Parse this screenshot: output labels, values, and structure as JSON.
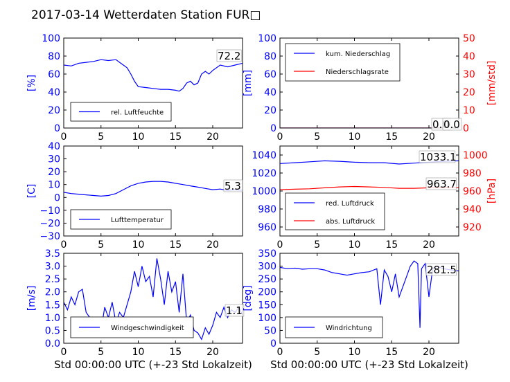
{
  "figure": {
    "title": "2017-03-14 Wetterdaten Station FUR□",
    "xlabel": "Std 00:00:00 UTC (+-23 Std Lokalzeit)"
  },
  "colors": {
    "blue": "#0000ff",
    "red": "#ff0000",
    "black": "#000000"
  },
  "chart_data": [
    {
      "id": "humidity",
      "type": "line",
      "xlim": [
        0,
        24
      ],
      "ylim": [
        0,
        100
      ],
      "ylabel": "[%]",
      "xticks": [
        "0",
        "5",
        "10",
        "15",
        "20"
      ],
      "yticks": [
        "0",
        "20",
        "40",
        "60",
        "80",
        "100"
      ],
      "legend": [
        {
          "label": "rel. Luftfeuchte",
          "color": "#0000ff"
        }
      ],
      "legend_location": "lower-left",
      "annotations": [
        "72.2"
      ],
      "series": [
        {
          "color": "#0000ff",
          "x": [
            0,
            1,
            2,
            3,
            4,
            5,
            6,
            7,
            7.5,
            8,
            8.5,
            9,
            9.5,
            10,
            11,
            12,
            13,
            14,
            15,
            15.5,
            16,
            16.5,
            17,
            17.5,
            18,
            18.5,
            19,
            19.5,
            20,
            21,
            22,
            23,
            24
          ],
          "y": [
            70,
            69,
            72,
            73,
            74,
            76,
            75,
            76,
            73,
            70,
            67,
            60,
            52,
            46,
            45,
            44,
            43,
            43,
            42,
            41,
            44,
            50,
            52,
            48,
            50,
            60,
            63,
            60,
            64,
            70,
            68,
            70,
            72
          ]
        }
      ]
    },
    {
      "id": "precipitation",
      "type": "line",
      "xlim": [
        0,
        24
      ],
      "ylim": [
        0,
        100
      ],
      "ylabel": "[mm]",
      "ylim_right": [
        0,
        50
      ],
      "ylabel_right": "[mm/std]",
      "xticks": [
        "0",
        "5",
        "10",
        "15",
        "20"
      ],
      "yticks": [
        "0",
        "20",
        "40",
        "60",
        "80",
        "100"
      ],
      "yticks_right": [
        "0",
        "10",
        "20",
        "30",
        "40",
        "50"
      ],
      "legend": [
        {
          "label": "kum. Niederschlag",
          "color": "#0000ff"
        },
        {
          "label": "Niederschlagsrate",
          "color": "#ff0000"
        }
      ],
      "legend_location": "upper-left",
      "annotations": [
        "0.0",
        "0.0"
      ],
      "series": [
        {
          "color": "#0000ff",
          "x": [
            0,
            24
          ],
          "y": [
            0,
            0
          ]
        },
        {
          "color": "#ff0000",
          "x": [
            0,
            24
          ],
          "y": [
            0,
            0
          ]
        }
      ]
    },
    {
      "id": "temperature",
      "type": "line",
      "xlim": [
        0,
        24
      ],
      "ylim": [
        -30,
        40
      ],
      "ylabel": "[C]",
      "xticks": [
        "0",
        "5",
        "10",
        "15",
        "20"
      ],
      "yticks": [
        "−30",
        "−20",
        "−10",
        "0",
        "10",
        "20",
        "30",
        "40"
      ],
      "legend": [
        {
          "label": "Lufttemperatur",
          "color": "#0000ff"
        }
      ],
      "legend_location": "lower-left",
      "annotations": [
        "5.3"
      ],
      "series": [
        {
          "color": "#0000ff",
          "x": [
            0,
            1,
            2,
            3,
            4,
            5,
            6,
            7,
            8,
            9,
            10,
            11,
            12,
            13,
            14,
            15,
            16,
            17,
            18,
            19,
            20,
            21,
            22,
            23,
            24
          ],
          "y": [
            4,
            3,
            2.5,
            2,
            1.5,
            1,
            1.5,
            3,
            6,
            9,
            11,
            12,
            12.5,
            12.5,
            12,
            11,
            10,
            9,
            8,
            7,
            6,
            6.5,
            5.5,
            6,
            5.5
          ]
        }
      ]
    },
    {
      "id": "pressure",
      "type": "line",
      "xlim": [
        0,
        24
      ],
      "ylim": [
        950,
        1050
      ],
      "ylabel": "",
      "ylim_right": [
        910,
        1010
      ],
      "ylabel_right": "[hPa]",
      "xticks": [
        "0",
        "5",
        "10",
        "15",
        "20"
      ],
      "yticks": [
        "960",
        "980",
        "1000",
        "1020",
        "1040"
      ],
      "yticks_right": [
        "920",
        "940",
        "960",
        "980",
        "1000"
      ],
      "legend": [
        {
          "label": "red. Luftdruck",
          "color": "#0000ff"
        },
        {
          "label": "abs. Luftdruck",
          "color": "#ff0000"
        }
      ],
      "legend_location": "lower-left",
      "annotations": [
        "1033.1",
        "963.7"
      ],
      "series": [
        {
          "color": "#0000ff",
          "axis": "left",
          "x": [
            0,
            2,
            4,
            6,
            8,
            10,
            12,
            14,
            16,
            18,
            20,
            22,
            24
          ],
          "y": [
            1030.5,
            1031.5,
            1032.5,
            1033.5,
            1033,
            1032,
            1031.5,
            1031.5,
            1030,
            1031,
            1032,
            1033,
            1033.5
          ]
        },
        {
          "color": "#ff0000",
          "axis": "right",
          "x": [
            0,
            2,
            4,
            6,
            8,
            10,
            12,
            14,
            16,
            18,
            20,
            22,
            24
          ],
          "y": [
            961.5,
            962,
            962.5,
            963.5,
            964.5,
            965,
            964.5,
            964,
            963,
            963,
            963.5,
            963.7,
            964
          ]
        }
      ]
    },
    {
      "id": "windspeed",
      "type": "line",
      "xlim": [
        0,
        24
      ],
      "ylim": [
        0,
        3.5
      ],
      "ylabel": "[m/s]",
      "xticks": [
        "0",
        "5",
        "10",
        "15",
        "20"
      ],
      "yticks": [
        "0.0",
        "0.5",
        "1.0",
        "1.5",
        "2.0",
        "2.5",
        "3.0",
        "3.5"
      ],
      "legend": [
        {
          "label": "Windgeschwindigkeit",
          "color": "#0000ff"
        }
      ],
      "legend_location": "lower-left",
      "annotations": [
        "1.1"
      ],
      "series": [
        {
          "color": "#0000ff",
          "x": [
            0,
            0.5,
            1,
            1.5,
            2,
            2.5,
            3,
            3.5,
            4,
            4.5,
            5,
            5.5,
            6,
            6.5,
            7,
            7.5,
            8,
            8.5,
            9,
            9.5,
            10,
            10.5,
            11,
            11.5,
            12,
            12.5,
            13,
            13.5,
            14,
            14.5,
            15,
            15.5,
            16,
            16.5,
            17,
            17.5,
            18,
            18.5,
            19,
            19.5,
            20,
            20.5,
            21,
            21.5,
            22,
            22.5,
            23,
            23.5,
            24
          ],
          "y": [
            1.6,
            1.3,
            1.8,
            1.5,
            2.0,
            2.1,
            1.2,
            1.0,
            0.8,
            0.6,
            0.5,
            1.4,
            1.0,
            1.6,
            0.8,
            1.2,
            1.0,
            1.5,
            2.0,
            2.8,
            2.2,
            3.0,
            2.4,
            2.6,
            1.8,
            3.3,
            2.5,
            1.5,
            2.8,
            2.0,
            2.4,
            1.2,
            2.7,
            0.8,
            1.1,
            0.5,
            0.4,
            0.15,
            0.6,
            0.35,
            0.7,
            1.2,
            1.0,
            1.4,
            1.0,
            1.3,
            1.2,
            1.4,
            1.1
          ]
        }
      ]
    },
    {
      "id": "winddirection",
      "type": "line",
      "xlim": [
        0,
        24
      ],
      "ylim": [
        0,
        350
      ],
      "ylabel": "[deg]",
      "xticks": [
        "0",
        "5",
        "10",
        "15",
        "20"
      ],
      "yticks": [
        "0",
        "50",
        "100",
        "150",
        "200",
        "250",
        "300",
        "350"
      ],
      "legend": [
        {
          "label": "Windrichtung",
          "color": "#0000ff"
        }
      ],
      "legend_location": "lower-left",
      "annotations": [
        "281.5"
      ],
      "series": [
        {
          "color": "#0000ff",
          "x": [
            0,
            1,
            2,
            3,
            4,
            5,
            6,
            7,
            8,
            9,
            10,
            11,
            12,
            13,
            13.5,
            14,
            14.5,
            15,
            15.5,
            16,
            17,
            17.5,
            18,
            18.5,
            18.8,
            19,
            19.5,
            20,
            20.5,
            21,
            22,
            23,
            24
          ],
          "y": [
            295,
            290,
            292,
            288,
            290,
            290,
            285,
            275,
            270,
            265,
            270,
            275,
            278,
            290,
            150,
            285,
            260,
            200,
            270,
            180,
            260,
            300,
            320,
            310,
            60,
            290,
            310,
            180,
            290,
            300,
            290,
            285,
            281
          ]
        }
      ]
    }
  ]
}
